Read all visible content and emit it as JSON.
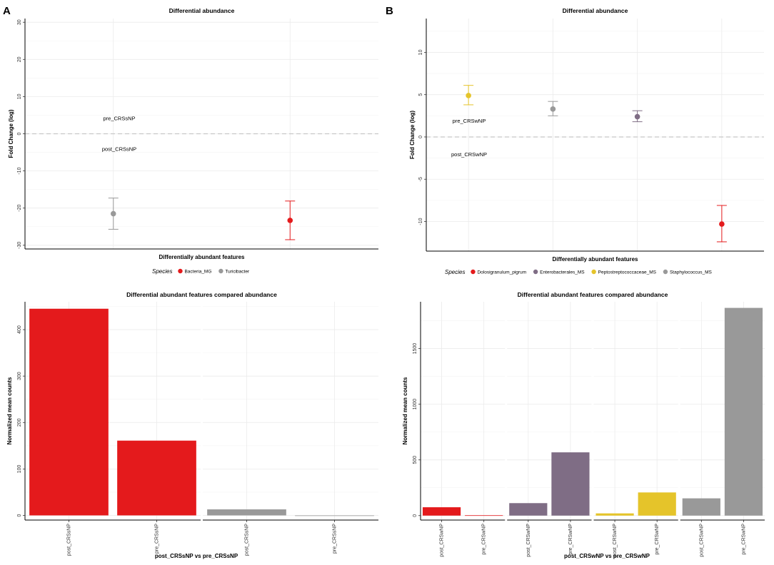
{
  "panel_labels": [
    "A",
    "B"
  ],
  "chart_data": [
    {
      "type": "scatter",
      "panel": "A",
      "title": "Differential abundance",
      "xlabel": "Differentially abundant features",
      "ylabel": "Fold Change (log)",
      "ylim": [
        -31,
        31
      ],
      "yticks": [
        -30,
        -20,
        -10,
        0,
        10,
        20,
        30
      ],
      "grid": true,
      "reference_line": 0,
      "annotations": {
        "above": "pre_CRSsNP",
        "below": "post_CRSsNP"
      },
      "legend_title": "Species",
      "legend_position": "bottom",
      "points": [
        {
          "species": "Turicibacter",
          "value": -21.5,
          "low": -25.7,
          "high": -17.3,
          "color": "#999999"
        },
        {
          "species": "Bacteria_MG",
          "value": -23.3,
          "low": -28.5,
          "high": -18.1,
          "color": "#e41a1c"
        }
      ],
      "legend": [
        {
          "label": "Bacteria_MG",
          "color": "#e41a1c"
        },
        {
          "label": "Turicibacter",
          "color": "#999999"
        }
      ]
    },
    {
      "type": "scatter",
      "panel": "B",
      "title": "Differential abundance",
      "xlabel": "Differentially abundant features",
      "ylabel": "Fold Change (log)",
      "ylim": [
        -13.5,
        14
      ],
      "yticks": [
        -10,
        -5,
        0,
        5,
        10
      ],
      "grid": true,
      "reference_line": 0,
      "annotations": {
        "above": "pre_CRSwNP",
        "below": "post_CRSwNP"
      },
      "legend_title": "Species",
      "legend_position": "bottom",
      "points": [
        {
          "species": "Peptostreptococcaceae_MS",
          "value": 4.9,
          "low": 3.8,
          "high": 6.1,
          "color": "#e5c42a"
        },
        {
          "species": "Staphylococcus_MS",
          "value": 3.3,
          "low": 2.5,
          "high": 4.2,
          "color": "#999999"
        },
        {
          "species": "Enterobacterales_MS",
          "value": 2.4,
          "low": 1.8,
          "high": 3.1,
          "color": "#7f6d85"
        },
        {
          "species": "Dolosigranulum_pigrum",
          "value": -10.3,
          "low": -12.4,
          "high": -8.1,
          "color": "#e41a1c"
        }
      ],
      "legend": [
        {
          "label": "Dolosigranulum_pigrum",
          "color": "#e41a1c"
        },
        {
          "label": "Enterobacterales_MS",
          "color": "#7f6d85"
        },
        {
          "label": "Peptostreptococcaceae_MS",
          "color": "#e5c42a"
        },
        {
          "label": "Staphylococcus_MS",
          "color": "#999999"
        }
      ]
    },
    {
      "type": "bar",
      "panel": "C",
      "title": "Differential abundant features compared abundance",
      "xlabel": "post_CRSsNP vs pre_CRSsNP",
      "ylabel": "Normalized mean counts",
      "ylim": [
        -10,
        460
      ],
      "yticks": [
        0,
        100,
        200,
        300,
        400
      ],
      "facets": [
        {
          "species": "Bacteria_MG",
          "color": "#e41a1c",
          "categories": [
            "post_CRSsNP",
            "pre_CRSsNP"
          ],
          "values": [
            445,
            161
          ]
        },
        {
          "species": "Turicibacter",
          "color": "#999999",
          "categories": [
            "post_CRSsNP",
            "pre_CRSsNP"
          ],
          "values": [
            13,
            0
          ]
        }
      ]
    },
    {
      "type": "bar",
      "panel": "D",
      "title": "Differential abundant features compared abundance",
      "xlabel": "post_CRSwNP vs pre_CRSwNP",
      "ylabel": "Normalized mean counts",
      "ylim": [
        -40,
        1920
      ],
      "yticks": [
        0,
        500,
        1000,
        1500
      ],
      "facets": [
        {
          "species": "Dolosigranulum_pigrum",
          "color": "#e41a1c",
          "categories": [
            "post_CRSwNP",
            "pre_CRSwNP"
          ],
          "values": [
            75,
            3
          ]
        },
        {
          "species": "Enterobacterales_MS",
          "color": "#7f6d85",
          "categories": [
            "post_CRSwNP",
            "pre_CRSwNP"
          ],
          "values": [
            112,
            568
          ]
        },
        {
          "species": "Peptostreptococcaceae_MS",
          "color": "#e5c42a",
          "categories": [
            "post_CRSwNP",
            "pre_CRSwNP"
          ],
          "values": [
            20,
            208
          ]
        },
        {
          "species": "Staphylococcus_MS",
          "color": "#999999",
          "categories": [
            "post_CRSwNP",
            "pre_CRSwNP"
          ],
          "values": [
            155,
            1865
          ]
        }
      ]
    }
  ]
}
